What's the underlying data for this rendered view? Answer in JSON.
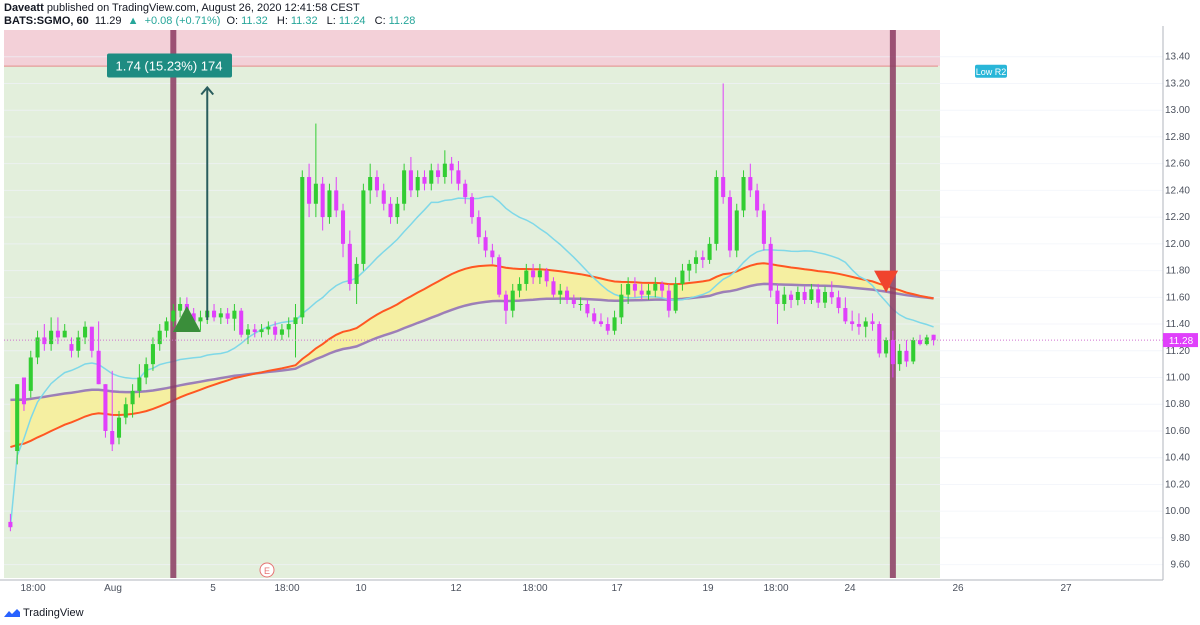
{
  "header": {
    "author": "Daveatt",
    "published_text": "published on TradingView.com, August 26, 2020 12:41:58 CEST",
    "symbol": "BATS:SGMO, 60",
    "last": "11.29",
    "change_arrow": "▲",
    "change": "+0.08 (+0.71%)",
    "o_label": "O:",
    "o_val": "11.32",
    "h_label": "H:",
    "h_val": "11.32",
    "l_label": "L:",
    "l_val": "11.24",
    "c_label": "C:",
    "c_val": "11.28"
  },
  "footer": {
    "brand": "TradingView"
  },
  "colors": {
    "up": "#26a69a",
    "bull_candle": "#32cd32",
    "bear_candle": "#e040fb",
    "sma_fast": "#7fd8e8",
    "ema_red": "#ff5722",
    "ema_purple": "#9c7fb8",
    "fill_yellow": "#f6ee9a",
    "bg_green": "#e3efdc",
    "bg_red": "#f3d0d8",
    "marker_bar": "#8b3a62",
    "pivot_label": "#29b6d8"
  },
  "chart_data": {
    "type": "candlestick",
    "y_axis": {
      "min": 9.5,
      "max": 13.6,
      "ticks": [
        "13.40",
        "13.20",
        "13.00",
        "12.80",
        "12.60",
        "12.40",
        "12.20",
        "12.00",
        "11.80",
        "11.60",
        "11.40",
        "11.20",
        "11.00",
        "10.80",
        "10.60",
        "10.40",
        "10.20",
        "10.00",
        "9.80",
        "9.60"
      ]
    },
    "x_axis": {
      "ticks": [
        "18:00",
        "Aug",
        "5",
        "18:00",
        "10",
        "12",
        "18:00",
        "17",
        "19",
        "18:00",
        "24",
        "26",
        "27"
      ]
    },
    "last_price": "11.28",
    "measure_label": "1.74 (15.23%) 174",
    "measure": {
      "from": 11.43,
      "to": 13.17
    },
    "resistance_line": 13.33,
    "pivot_label": "Low R2",
    "earnings_marker": "E",
    "signals": [
      {
        "type": "buy",
        "price": 11.4
      },
      {
        "type": "sell",
        "price": 11.74
      }
    ],
    "candles": [
      {
        "o": 9.92,
        "h": 9.98,
        "l": 9.85,
        "c": 9.88
      },
      {
        "o": 10.45,
        "h": 10.95,
        "l": 10.35,
        "c": 10.95
      },
      {
        "o": 11.0,
        "h": 11.0,
        "l": 10.75,
        "c": 10.8
      },
      {
        "o": 10.9,
        "h": 11.2,
        "l": 10.85,
        "c": 11.15
      },
      {
        "o": 11.15,
        "h": 11.35,
        "l": 11.1,
        "c": 11.3
      },
      {
        "o": 11.3,
        "h": 11.4,
        "l": 11.2,
        "c": 11.25
      },
      {
        "o": 11.25,
        "h": 11.45,
        "l": 11.2,
        "c": 11.35
      },
      {
        "o": 11.35,
        "h": 11.45,
        "l": 11.25,
        "c": 11.3
      },
      {
        "o": 11.3,
        "h": 11.4,
        "l": 11.3,
        "c": 11.35
      },
      {
        "o": 11.25,
        "h": 11.3,
        "l": 11.15,
        "c": 11.2
      },
      {
        "o": 11.2,
        "h": 11.35,
        "l": 11.15,
        "c": 11.3
      },
      {
        "o": 11.3,
        "h": 11.42,
        "l": 11.25,
        "c": 11.38
      },
      {
        "o": 11.38,
        "h": 11.38,
        "l": 11.15,
        "c": 11.2
      },
      {
        "o": 11.2,
        "h": 11.42,
        "l": 10.95,
        "c": 10.95
      },
      {
        "o": 10.95,
        "h": 10.95,
        "l": 10.55,
        "c": 10.6
      },
      {
        "o": 10.6,
        "h": 11.05,
        "l": 10.45,
        "c": 10.5
      },
      {
        "o": 10.55,
        "h": 10.75,
        "l": 10.5,
        "c": 10.7
      },
      {
        "o": 10.7,
        "h": 10.85,
        "l": 10.65,
        "c": 10.8
      },
      {
        "o": 10.8,
        "h": 10.95,
        "l": 10.7,
        "c": 10.9
      },
      {
        "o": 10.9,
        "h": 11.1,
        "l": 10.85,
        "c": 11.0
      },
      {
        "o": 11.0,
        "h": 11.15,
        "l": 10.95,
        "c": 11.1
      },
      {
        "o": 11.1,
        "h": 11.3,
        "l": 11.05,
        "c": 11.25
      },
      {
        "o": 11.25,
        "h": 11.4,
        "l": 11.2,
        "c": 11.35
      },
      {
        "o": 11.35,
        "h": 11.45,
        "l": 11.3,
        "c": 11.42
      },
      {
        "o": 11.42,
        "h": 11.55,
        "l": 11.38,
        "c": 11.5
      },
      {
        "o": 11.5,
        "h": 11.6,
        "l": 11.45,
        "c": 11.55
      },
      {
        "o": 11.55,
        "h": 11.6,
        "l": 11.45,
        "c": 11.48
      },
      {
        "o": 11.48,
        "h": 11.52,
        "l": 11.38,
        "c": 11.42
      },
      {
        "o": 11.42,
        "h": 11.5,
        "l": 11.35,
        "c": 11.45
      },
      {
        "o": 11.45,
        "h": 11.55,
        "l": 11.4,
        "c": 11.5
      },
      {
        "o": 11.5,
        "h": 11.55,
        "l": 11.42,
        "c": 11.45
      },
      {
        "o": 11.45,
        "h": 11.52,
        "l": 11.4,
        "c": 11.48
      },
      {
        "o": 11.48,
        "h": 11.52,
        "l": 11.4,
        "c": 11.44
      },
      {
        "o": 11.44,
        "h": 11.55,
        "l": 11.35,
        "c": 11.5
      },
      {
        "o": 11.5,
        "h": 11.52,
        "l": 11.3,
        "c": 11.32
      },
      {
        "o": 11.32,
        "h": 11.4,
        "l": 11.25,
        "c": 11.36
      },
      {
        "o": 11.36,
        "h": 11.4,
        "l": 11.3,
        "c": 11.34
      },
      {
        "o": 11.34,
        "h": 11.4,
        "l": 11.3,
        "c": 11.36
      },
      {
        "o": 11.36,
        "h": 11.42,
        "l": 11.32,
        "c": 11.38
      },
      {
        "o": 11.38,
        "h": 11.42,
        "l": 11.28,
        "c": 11.32
      },
      {
        "o": 11.32,
        "h": 11.4,
        "l": 11.28,
        "c": 11.36
      },
      {
        "o": 11.36,
        "h": 11.45,
        "l": 11.3,
        "c": 11.4
      },
      {
        "o": 11.4,
        "h": 11.55,
        "l": 11.15,
        "c": 11.45
      },
      {
        "o": 11.45,
        "h": 12.55,
        "l": 11.4,
        "c": 12.5
      },
      {
        "o": 12.5,
        "h": 12.6,
        "l": 12.2,
        "c": 12.3
      },
      {
        "o": 12.3,
        "h": 12.9,
        "l": 12.2,
        "c": 12.45
      },
      {
        "o": 12.45,
        "h": 12.5,
        "l": 12.1,
        "c": 12.2
      },
      {
        "o": 12.2,
        "h": 12.45,
        "l": 12.15,
        "c": 12.4
      },
      {
        "o": 12.4,
        "h": 12.5,
        "l": 12.2,
        "c": 12.25
      },
      {
        "o": 12.25,
        "h": 12.3,
        "l": 11.9,
        "c": 12.0
      },
      {
        "o": 12.0,
        "h": 12.1,
        "l": 11.65,
        "c": 11.7
      },
      {
        "o": 11.7,
        "h": 11.9,
        "l": 11.55,
        "c": 11.85
      },
      {
        "o": 11.85,
        "h": 12.45,
        "l": 11.8,
        "c": 12.4
      },
      {
        "o": 12.4,
        "h": 12.6,
        "l": 12.3,
        "c": 12.5
      },
      {
        "o": 12.5,
        "h": 12.55,
        "l": 12.35,
        "c": 12.4
      },
      {
        "o": 12.4,
        "h": 12.45,
        "l": 12.25,
        "c": 12.3
      },
      {
        "o": 12.3,
        "h": 12.35,
        "l": 12.15,
        "c": 12.2
      },
      {
        "o": 12.2,
        "h": 12.35,
        "l": 12.15,
        "c": 12.3
      },
      {
        "o": 12.3,
        "h": 12.6,
        "l": 12.25,
        "c": 12.55
      },
      {
        "o": 12.55,
        "h": 12.65,
        "l": 12.35,
        "c": 12.4
      },
      {
        "o": 12.4,
        "h": 12.55,
        "l": 12.35,
        "c": 12.5
      },
      {
        "o": 12.5,
        "h": 12.55,
        "l": 12.4,
        "c": 12.45
      },
      {
        "o": 12.45,
        "h": 12.6,
        "l": 12.4,
        "c": 12.55
      },
      {
        "o": 12.55,
        "h": 12.6,
        "l": 12.45,
        "c": 12.5
      },
      {
        "o": 12.5,
        "h": 12.7,
        "l": 12.45,
        "c": 12.6
      },
      {
        "o": 12.6,
        "h": 12.65,
        "l": 12.45,
        "c": 12.55
      },
      {
        "o": 12.55,
        "h": 12.62,
        "l": 12.4,
        "c": 12.45
      },
      {
        "o": 12.45,
        "h": 12.48,
        "l": 12.3,
        "c": 12.35
      },
      {
        "o": 12.35,
        "h": 12.38,
        "l": 12.15,
        "c": 12.2
      },
      {
        "o": 12.2,
        "h": 12.25,
        "l": 12.0,
        "c": 12.05
      },
      {
        "o": 12.05,
        "h": 12.1,
        "l": 11.9,
        "c": 11.95
      },
      {
        "o": 11.95,
        "h": 12.0,
        "l": 11.85,
        "c": 11.9
      },
      {
        "o": 11.9,
        "h": 11.92,
        "l": 11.6,
        "c": 11.62
      },
      {
        "o": 11.62,
        "h": 11.65,
        "l": 11.4,
        "c": 11.5
      },
      {
        "o": 11.5,
        "h": 11.7,
        "l": 11.45,
        "c": 11.65
      },
      {
        "o": 11.65,
        "h": 11.75,
        "l": 11.6,
        "c": 11.7
      },
      {
        "o": 11.7,
        "h": 11.85,
        "l": 11.65,
        "c": 11.8
      },
      {
        "o": 11.8,
        "h": 11.85,
        "l": 11.7,
        "c": 11.75
      },
      {
        "o": 11.75,
        "h": 11.85,
        "l": 11.7,
        "c": 11.8
      },
      {
        "o": 11.8,
        "h": 11.82,
        "l": 11.68,
        "c": 11.72
      },
      {
        "o": 11.72,
        "h": 11.75,
        "l": 11.6,
        "c": 11.62
      },
      {
        "o": 11.62,
        "h": 11.7,
        "l": 11.55,
        "c": 11.65
      },
      {
        "o": 11.65,
        "h": 11.68,
        "l": 11.55,
        "c": 11.58
      },
      {
        "o": 11.58,
        "h": 11.62,
        "l": 11.52,
        "c": 11.55
      },
      {
        "o": 11.55,
        "h": 11.6,
        "l": 11.5,
        "c": 11.55
      },
      {
        "o": 11.55,
        "h": 11.58,
        "l": 11.45,
        "c": 11.48
      },
      {
        "o": 11.48,
        "h": 11.52,
        "l": 11.4,
        "c": 11.42
      },
      {
        "o": 11.42,
        "h": 11.48,
        "l": 11.38,
        "c": 11.4
      },
      {
        "o": 11.4,
        "h": 11.45,
        "l": 11.32,
        "c": 11.35
      },
      {
        "o": 11.35,
        "h": 11.5,
        "l": 11.32,
        "c": 11.45
      },
      {
        "o": 11.45,
        "h": 11.7,
        "l": 11.4,
        "c": 11.62
      },
      {
        "o": 11.62,
        "h": 11.75,
        "l": 11.55,
        "c": 11.7
      },
      {
        "o": 11.7,
        "h": 11.75,
        "l": 11.6,
        "c": 11.65
      },
      {
        "o": 11.65,
        "h": 11.7,
        "l": 11.58,
        "c": 11.62
      },
      {
        "o": 11.62,
        "h": 11.7,
        "l": 11.58,
        "c": 11.65
      },
      {
        "o": 11.65,
        "h": 11.75,
        "l": 11.6,
        "c": 11.7
      },
      {
        "o": 11.7,
        "h": 11.72,
        "l": 11.6,
        "c": 11.65
      },
      {
        "o": 11.65,
        "h": 11.7,
        "l": 11.45,
        "c": 11.5
      },
      {
        "o": 11.5,
        "h": 11.75,
        "l": 11.48,
        "c": 11.7
      },
      {
        "o": 11.7,
        "h": 11.85,
        "l": 11.65,
        "c": 11.8
      },
      {
        "o": 11.8,
        "h": 11.88,
        "l": 11.72,
        "c": 11.85
      },
      {
        "o": 11.85,
        "h": 11.95,
        "l": 11.78,
        "c": 11.9
      },
      {
        "o": 11.9,
        "h": 11.95,
        "l": 11.82,
        "c": 11.88
      },
      {
        "o": 11.88,
        "h": 12.05,
        "l": 11.85,
        "c": 12.0
      },
      {
        "o": 12.0,
        "h": 12.55,
        "l": 11.95,
        "c": 12.5
      },
      {
        "o": 12.5,
        "h": 13.2,
        "l": 12.3,
        "c": 12.35
      },
      {
        "o": 12.35,
        "h": 12.4,
        "l": 11.9,
        "c": 11.95
      },
      {
        "o": 11.95,
        "h": 12.3,
        "l": 11.9,
        "c": 12.25
      },
      {
        "o": 12.25,
        "h": 12.55,
        "l": 12.2,
        "c": 12.5
      },
      {
        "o": 12.5,
        "h": 12.6,
        "l": 12.35,
        "c": 12.4
      },
      {
        "o": 12.4,
        "h": 12.45,
        "l": 12.2,
        "c": 12.25
      },
      {
        "o": 12.25,
        "h": 12.3,
        "l": 11.95,
        "c": 12.0
      },
      {
        "o": 12.0,
        "h": 12.05,
        "l": 11.6,
        "c": 11.65
      },
      {
        "o": 11.65,
        "h": 11.7,
        "l": 11.4,
        "c": 11.55
      },
      {
        "o": 11.55,
        "h": 11.68,
        "l": 11.5,
        "c": 11.62
      },
      {
        "o": 11.62,
        "h": 11.65,
        "l": 11.52,
        "c": 11.58
      },
      {
        "o": 11.58,
        "h": 11.68,
        "l": 11.54,
        "c": 11.64
      },
      {
        "o": 11.64,
        "h": 11.68,
        "l": 11.55,
        "c": 11.58
      },
      {
        "o": 11.58,
        "h": 11.7,
        "l": 11.55,
        "c": 11.66
      },
      {
        "o": 11.66,
        "h": 11.7,
        "l": 11.52,
        "c": 11.56
      },
      {
        "o": 11.56,
        "h": 11.68,
        "l": 11.52,
        "c": 11.64
      },
      {
        "o": 11.64,
        "h": 11.72,
        "l": 11.55,
        "c": 11.6
      },
      {
        "o": 11.6,
        "h": 11.65,
        "l": 11.48,
        "c": 11.52
      },
      {
        "o": 11.52,
        "h": 11.6,
        "l": 11.4,
        "c": 11.42
      },
      {
        "o": 11.42,
        "h": 11.5,
        "l": 11.35,
        "c": 11.4
      },
      {
        "o": 11.4,
        "h": 11.48,
        "l": 11.32,
        "c": 11.38
      },
      {
        "o": 11.38,
        "h": 11.45,
        "l": 11.3,
        "c": 11.42
      },
      {
        "o": 11.42,
        "h": 11.48,
        "l": 11.35,
        "c": 11.4
      },
      {
        "o": 11.4,
        "h": 11.42,
        "l": 11.15,
        "c": 11.18
      },
      {
        "o": 11.18,
        "h": 11.3,
        "l": 11.15,
        "c": 11.28
      },
      {
        "o": 11.28,
        "h": 11.35,
        "l": 11.0,
        "c": 11.1
      },
      {
        "o": 11.1,
        "h": 11.25,
        "l": 11.05,
        "c": 11.2
      },
      {
        "o": 11.2,
        "h": 11.28,
        "l": 11.08,
        "c": 11.12
      },
      {
        "o": 11.12,
        "h": 11.3,
        "l": 11.1,
        "c": 11.28
      },
      {
        "o": 11.28,
        "h": 11.32,
        "l": 11.24,
        "c": 11.25
      },
      {
        "o": 11.25,
        "h": 11.32,
        "l": 11.24,
        "c": 11.3
      },
      {
        "o": 11.32,
        "h": 11.32,
        "l": 11.24,
        "c": 11.28
      }
    ]
  }
}
